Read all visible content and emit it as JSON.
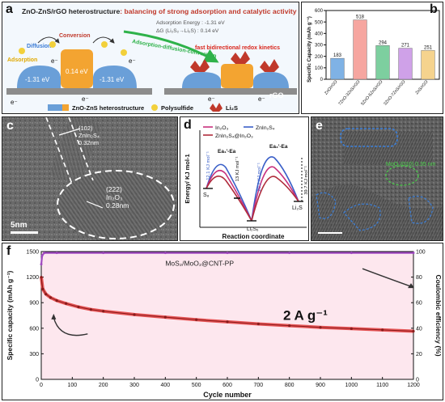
{
  "colors": {
    "panel_border": "#222222",
    "panel_f_bg": "#fde7ee",
    "capacity_red": "#e23b3b",
    "capacity_dark": "#8a1c1c",
    "ce_purple": "#a04ac0",
    "bar_colors": [
      "#7fb2e5",
      "#f6a6a0",
      "#7dcf9f",
      "#cfa1e8",
      "#f5d38e"
    ],
    "pathway_green": "#2fb24a",
    "zno_blue": "#6a9fd8",
    "zns_orange": "#f3a431",
    "rgo_gray": "#8c8c8c",
    "curve_in2o3": "#c8307d",
    "curve_znin2s4": "#3a5fc8",
    "curve_composite": "#b02c3c"
  },
  "panel_a": {
    "label": "a",
    "title_bold": "ZnO-ZnS/rGO heterostructure",
    "title_rest": ": balancing of strong adsorption and catalytic activity",
    "energy_adsorption": "Adsorption Energy : -1.31 eV",
    "energy_delta": "ΔG (Li₂S₂→Li₂S) : 0.14 eV",
    "pathway": "Adsorption-diffusion-conversion",
    "kinetics": "fast bidirectional redox kinetics",
    "word_diffusion": "Diffusion",
    "word_conversion": "Conversion",
    "word_adsorption": "Adsorption",
    "energy_left": "-1.31 eV",
    "energy_mid": "0.14 eV",
    "energy_right": "-1.31 eV",
    "electron": "e⁻",
    "rgo": "rGO",
    "legend_hetero": "ZnO-ZnS heterostructure",
    "legend_ps": "Polysulfide",
    "legend_li2s": "Li₂S"
  },
  "panel_b": {
    "label": "b"
  },
  "panel_c": {
    "label": "c",
    "lattice_top": "(102)",
    "material_top": "ZnIn₂S₄",
    "spacing_top": "0.32nm",
    "lattice_bottom": "(222)",
    "material_bottom": "In₂O₃",
    "spacing_bottom": "0.28nm",
    "scale": "5nm"
  },
  "panel_d": {
    "label": "d",
    "legend_in2o3": "In₂O₃",
    "legend_znin2s4": "ZnIn₂S₄",
    "legend_composite": "ZnIn₂S₄@In₂O₃",
    "ylabel": "Energy/ KJ mol-1",
    "xlabel": "Reaction coordinate",
    "ea_left": "Ea₁'-Ea",
    "ea_right": "Ea₂'-Ea",
    "val_121": "12.1 KJ mol⁻¹",
    "val_13": "13 KJ mol⁻¹",
    "val_202": "20.2 KJ mol⁻¹",
    "val_397": "39.7 KJ mol⁻¹",
    "state_s8": "S₈",
    "state_li2s6": "Li₂S₆",
    "state_li2s": "Li₂S"
  },
  "panel_e": {
    "label": "e",
    "lattice_annotation": "MoO₂(010) 0.35 nm"
  },
  "panel_f": {
    "label": "f"
  },
  "chart_data": [
    {
      "type": "bar",
      "panel": "b",
      "ylabel": "Specific Capacity (mAh g⁻¹)",
      "categories": [
        "ZnO/rGO",
        "7ZnO-3ZnS/rGO",
        "5ZnO-5ZnS/rGO",
        "3ZnO-7ZnS/rGO",
        "ZnS/rGO"
      ],
      "values": [
        183,
        518,
        294,
        271,
        251
      ],
      "ylim": [
        0,
        600
      ],
      "yticks": [
        0,
        100,
        200,
        300,
        400,
        500,
        600
      ]
    },
    {
      "type": "line",
      "panel": "f",
      "title": "MoS₂/MoO₂@CNT-PP",
      "rate_label": "2 A g⁻¹",
      "xlabel": "Cycle number",
      "ylabel_left": "Specific capacity (mAh g⁻¹)",
      "ylabel_right": "Coulombic efficiency (%)",
      "xlim": [
        0,
        1200
      ],
      "ylim_left": [
        0,
        1500
      ],
      "ylim_right": [
        0,
        100
      ],
      "xticks": [
        0,
        100,
        200,
        300,
        400,
        500,
        600,
        700,
        800,
        900,
        1000,
        1100,
        1200
      ],
      "yticks_left": [
        0,
        300,
        600,
        900,
        1200,
        1500
      ],
      "yticks_right": [
        0,
        20,
        40,
        60,
        80,
        100
      ],
      "series": [
        {
          "axis": "left",
          "x": [
            0,
            5,
            15,
            30,
            50,
            80,
            120,
            160,
            200,
            300,
            400,
            500,
            600,
            700,
            800,
            900,
            1000,
            1100,
            1200
          ],
          "values": [
            1200,
            1060,
            1000,
            960,
            925,
            890,
            850,
            820,
            800,
            760,
            730,
            700,
            675,
            650,
            630,
            610,
            595,
            580,
            565
          ]
        },
        {
          "axis": "right",
          "x": [
            0,
            3,
            10,
            50,
            200,
            400,
            600,
            800,
            1000,
            1200
          ],
          "values": [
            90,
            97,
            99,
            99,
            99,
            99,
            99,
            99,
            99,
            99
          ]
        }
      ]
    }
  ]
}
